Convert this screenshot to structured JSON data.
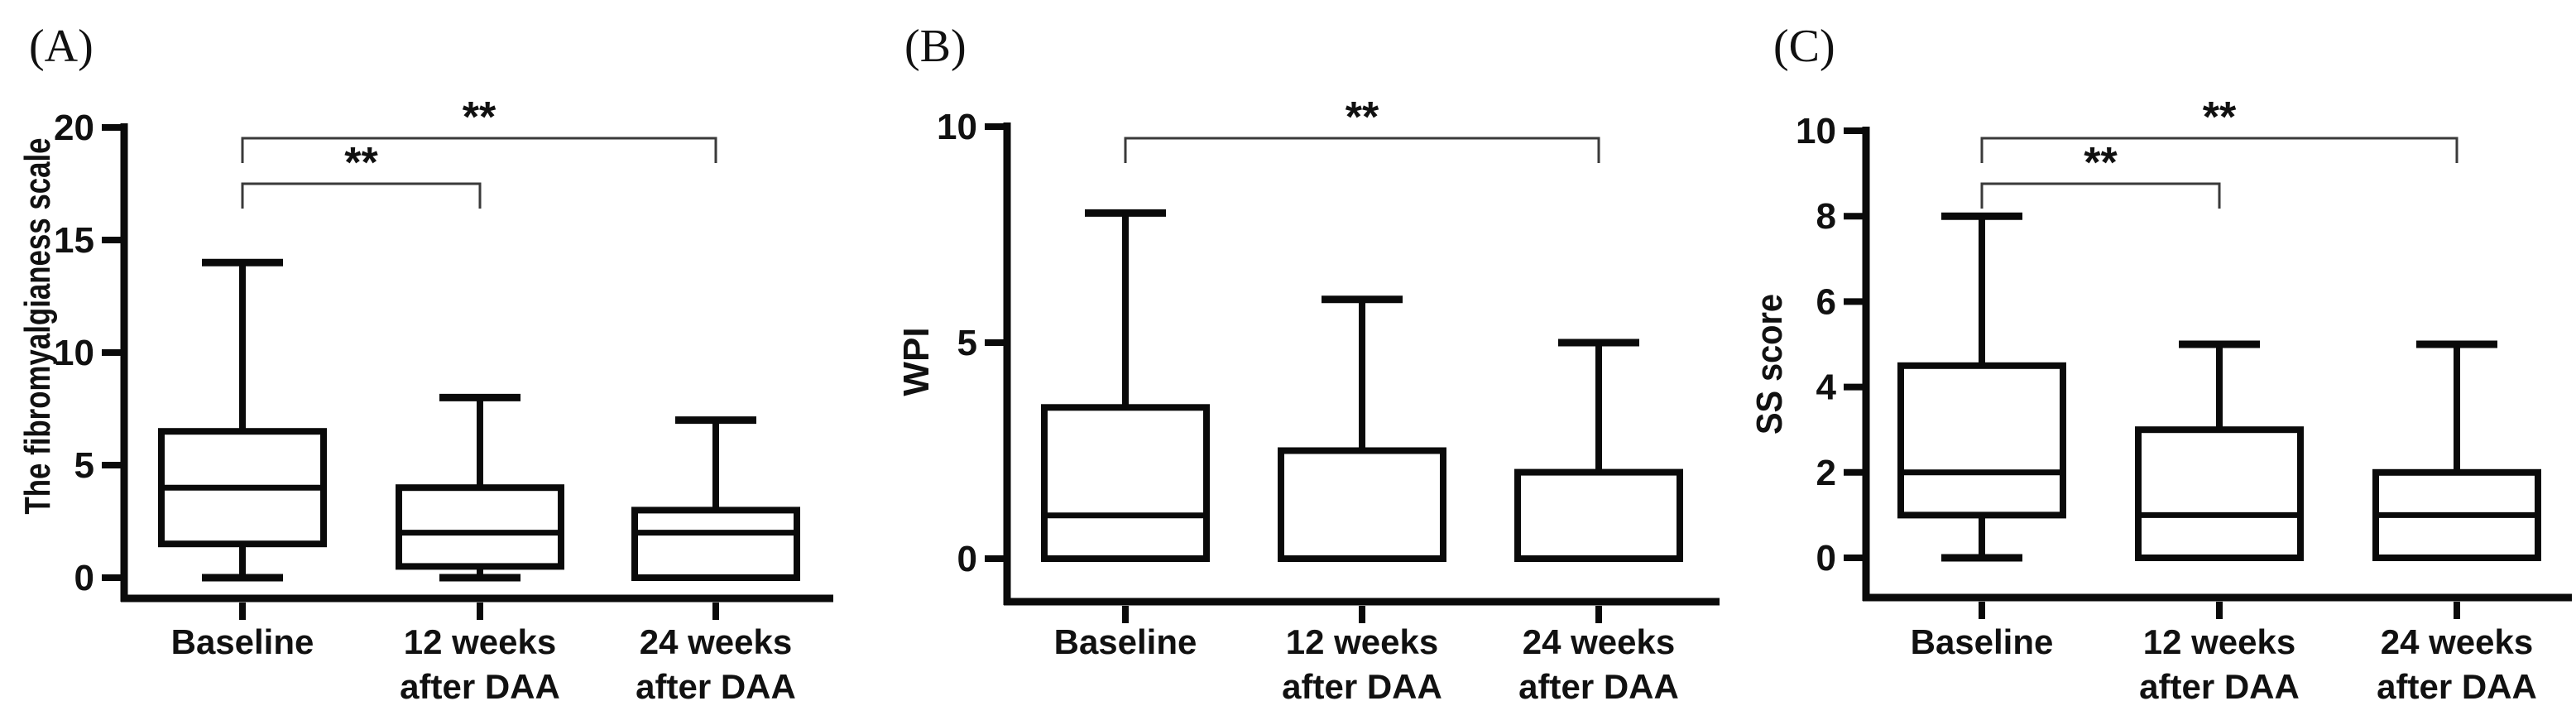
{
  "figure": {
    "background": "#ffffff",
    "line_color": "#0a0a0a",
    "bracket_color": "#3a3a3a",
    "text_color": "#111111"
  },
  "chart_data": [
    {
      "type": "box",
      "panel_label": "(A)",
      "ylabel": "The fibromyalgianess scale",
      "xlabel": "",
      "ylim": [
        0,
        20
      ],
      "yticks": [
        0,
        5,
        10,
        15,
        20
      ],
      "grid": "off",
      "categories": [
        [
          "Baseline"
        ],
        [
          "12 weeks",
          "after DAA"
        ],
        [
          "24 weeks",
          "after DAA"
        ]
      ],
      "boxes": [
        {
          "category": "Baseline",
          "min": 0,
          "q1": 1.5,
          "median": 4,
          "q3": 6.5,
          "max": 14
        },
        {
          "category": "12 weeks after DAA",
          "min": 0,
          "q1": 0.5,
          "median": 2,
          "q3": 4,
          "max": 8
        },
        {
          "category": "24 weeks after DAA",
          "min": 0,
          "q1": 0,
          "median": 2,
          "q3": 3,
          "max": 7
        }
      ],
      "significance": [
        {
          "from": "Baseline",
          "to": "12 weeks after DAA",
          "from_index": 0,
          "to_index": 1,
          "label": "**",
          "tier": "inner"
        },
        {
          "from": "Baseline",
          "to": "24 weeks after DAA",
          "from_index": 0,
          "to_index": 2,
          "label": "**",
          "tier": "outer"
        }
      ]
    },
    {
      "type": "box",
      "panel_label": "(B)",
      "ylabel": "WPI",
      "xlabel": "",
      "ylim": [
        0,
        10
      ],
      "yticks": [
        0,
        5,
        10
      ],
      "grid": "off",
      "categories": [
        [
          "Baseline"
        ],
        [
          "12 weeks",
          "after DAA"
        ],
        [
          "24 weeks",
          "after DAA"
        ]
      ],
      "boxes": [
        {
          "category": "Baseline",
          "min": 0,
          "q1": 0,
          "median": 1,
          "q3": 3.5,
          "max": 8
        },
        {
          "category": "12 weeks after DAA",
          "min": 0,
          "q1": 0,
          "median": 0,
          "q3": 2.5,
          "max": 6
        },
        {
          "category": "24 weeks after DAA",
          "min": 0,
          "q1": 0,
          "median": 0,
          "q3": 2,
          "max": 5
        }
      ],
      "significance": [
        {
          "from": "Baseline",
          "to": "24 weeks after DAA",
          "from_index": 0,
          "to_index": 2,
          "label": "**",
          "tier": "outer"
        }
      ]
    },
    {
      "type": "box",
      "panel_label": "(C)",
      "ylabel": "SS score",
      "xlabel": "",
      "ylim": [
        0,
        10
      ],
      "yticks": [
        0,
        2,
        4,
        6,
        8,
        10
      ],
      "grid": "off",
      "categories": [
        [
          "Baseline"
        ],
        [
          "12 weeks",
          "after DAA"
        ],
        [
          "24 weeks",
          "after DAA"
        ]
      ],
      "boxes": [
        {
          "category": "Baseline",
          "min": 0,
          "q1": 1,
          "median": 2,
          "q3": 4.5,
          "max": 8
        },
        {
          "category": "12 weeks after DAA",
          "min": 0,
          "q1": 0,
          "median": 1,
          "q3": 3,
          "max": 5
        },
        {
          "category": "24 weeks after DAA",
          "min": 0,
          "q1": 0,
          "median": 1,
          "q3": 2,
          "max": 5
        }
      ],
      "significance": [
        {
          "from": "Baseline",
          "to": "12 weeks after DAA",
          "from_index": 0,
          "to_index": 1,
          "label": "**",
          "tier": "inner"
        },
        {
          "from": "Baseline",
          "to": "24 weeks after DAA",
          "from_index": 0,
          "to_index": 2,
          "label": "**",
          "tier": "outer"
        }
      ]
    }
  ]
}
